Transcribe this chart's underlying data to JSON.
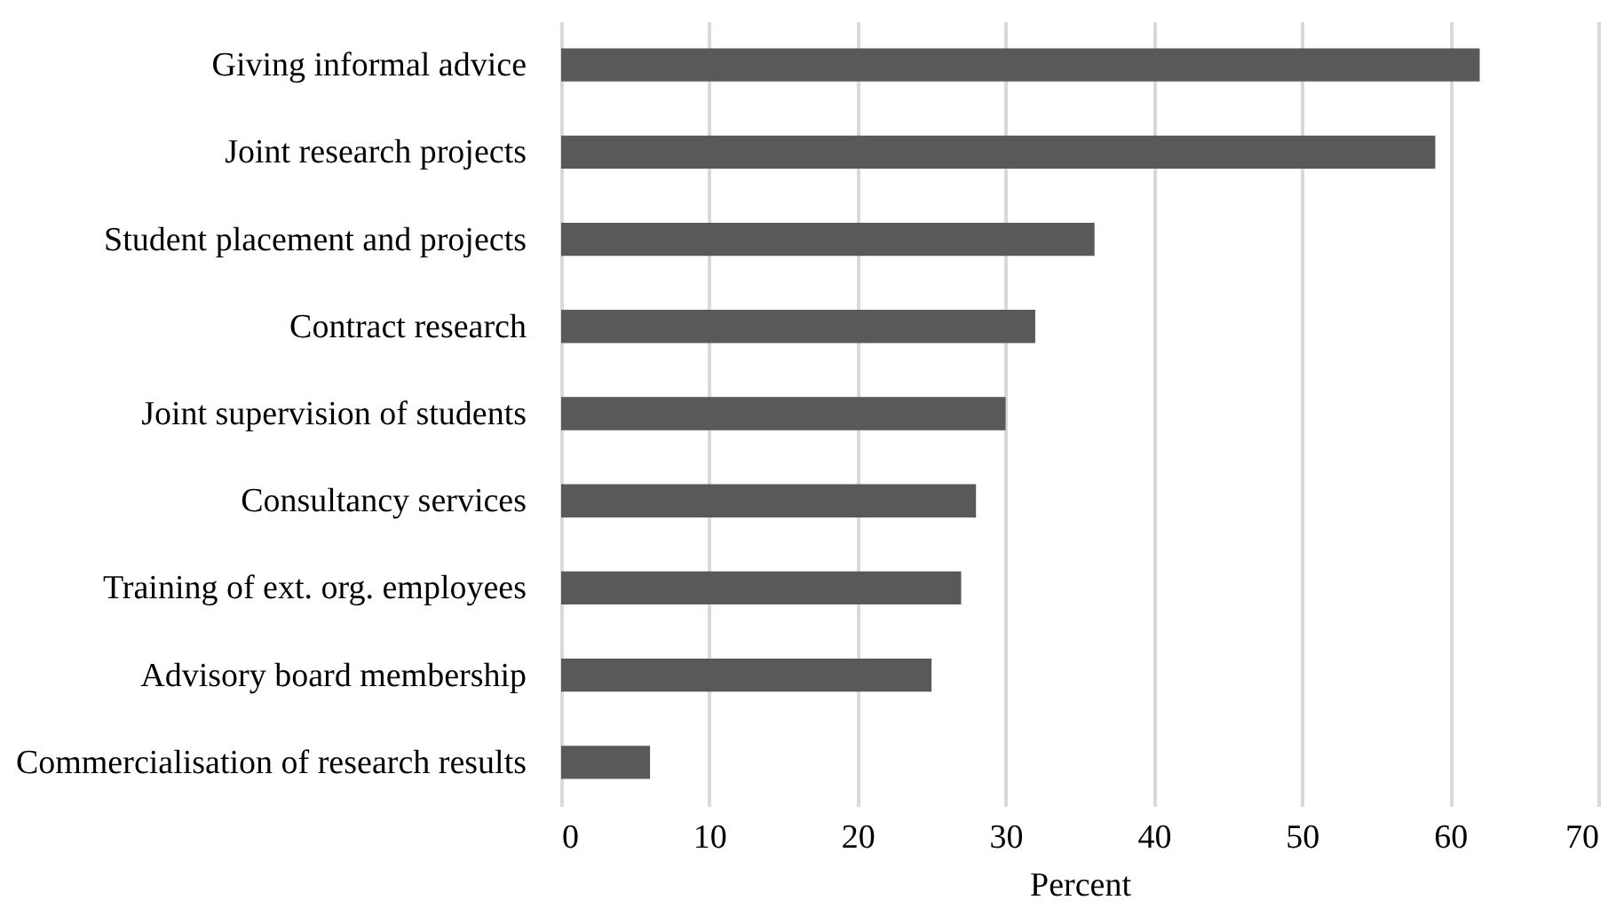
{
  "chart_data": {
    "type": "bar",
    "orientation": "horizontal",
    "xlabel": "Percent",
    "categories": [
      "Giving informal advice",
      "Joint research projects",
      "Student placement and projects",
      "Contract research",
      "Joint supervision of students",
      "Consultancy services",
      "Training of ext. org. employees",
      "Advisory board membership",
      "Commercialisation of research results"
    ],
    "values": [
      62,
      59,
      36,
      32,
      30,
      28,
      27,
      25,
      6
    ],
    "color": "#595959",
    "xlim": [
      0,
      70
    ],
    "xticks": [
      0,
      10,
      20,
      30,
      40,
      50,
      60,
      70
    ],
    "grid": "x"
  }
}
